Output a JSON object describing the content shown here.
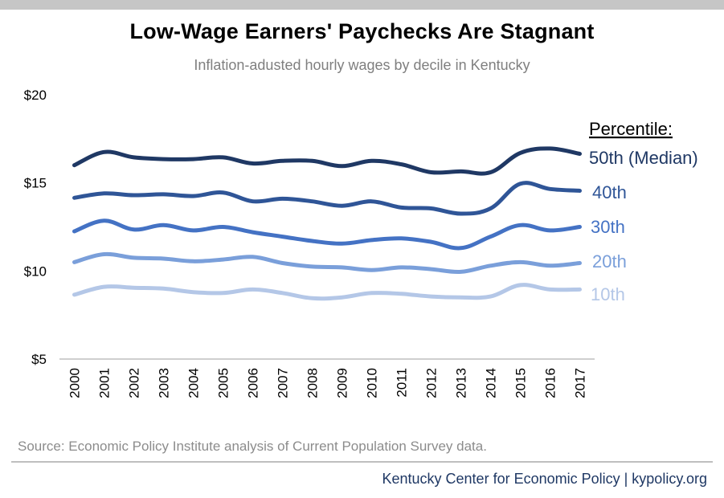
{
  "header": {
    "title": "Low-Wage Earners' Paychecks Are Stagnant",
    "subtitle": "Inflation-adusted hourly wages by decile in Kentucky"
  },
  "footer": {
    "source": "Source: Economic Policy Institute analysis of Current Population Survey data.",
    "credit": "Kentucky Center for Economic Policy | kypolicy.org"
  },
  "chart_data": {
    "type": "line",
    "title": "Low-Wage Earners' Paychecks Are Stagnant",
    "subtitle": "Inflation-adusted hourly wages by decile in Kentucky",
    "xlabel": "",
    "ylabel": "",
    "ylim": [
      5,
      20
    ],
    "yticks": [
      {
        "value": 5,
        "label": "$5"
      },
      {
        "value": 10,
        "label": "$10"
      },
      {
        "value": 15,
        "label": "$15"
      },
      {
        "value": 20,
        "label": "$20"
      }
    ],
    "grid": false,
    "legend_title": "Percentile:",
    "legend_placement": "right, labels at line ends",
    "x": [
      "2000",
      "2001",
      "2002",
      "2003",
      "2004",
      "2005",
      "2006",
      "2007",
      "2008",
      "2009",
      "2010",
      "2011",
      "2012",
      "2013",
      "2014",
      "2015",
      "2016",
      "2017"
    ],
    "series": [
      {
        "name": "50th (Median)",
        "color": "#1f3864",
        "values": [
          16.0,
          16.75,
          16.45,
          16.35,
          16.35,
          16.45,
          16.1,
          16.25,
          16.25,
          15.95,
          16.25,
          16.05,
          15.6,
          15.65,
          15.6,
          16.7,
          16.95,
          16.65
        ]
      },
      {
        "name": "40th",
        "color": "#2f5597",
        "values": [
          14.15,
          14.4,
          14.3,
          14.35,
          14.25,
          14.45,
          13.95,
          14.1,
          13.95,
          13.7,
          13.95,
          13.6,
          13.55,
          13.25,
          13.55,
          14.95,
          14.65,
          14.55
        ]
      },
      {
        "name": "30th",
        "color": "#4472c4",
        "values": [
          12.25,
          12.85,
          12.35,
          12.6,
          12.3,
          12.5,
          12.2,
          11.95,
          11.7,
          11.55,
          11.75,
          11.85,
          11.65,
          11.3,
          11.95,
          12.6,
          12.3,
          12.5
        ]
      },
      {
        "name": "20th",
        "color": "#7a9fda",
        "values": [
          10.5,
          10.95,
          10.75,
          10.7,
          10.55,
          10.65,
          10.8,
          10.45,
          10.25,
          10.2,
          10.05,
          10.2,
          10.1,
          9.95,
          10.3,
          10.5,
          10.3,
          10.45
        ]
      },
      {
        "name": "10th",
        "color": "#b4c7e7",
        "values": [
          8.65,
          9.1,
          9.05,
          9.0,
          8.8,
          8.75,
          8.95,
          8.75,
          8.45,
          8.5,
          8.75,
          8.7,
          8.55,
          8.5,
          8.55,
          9.2,
          8.95,
          8.95
        ]
      }
    ]
  }
}
